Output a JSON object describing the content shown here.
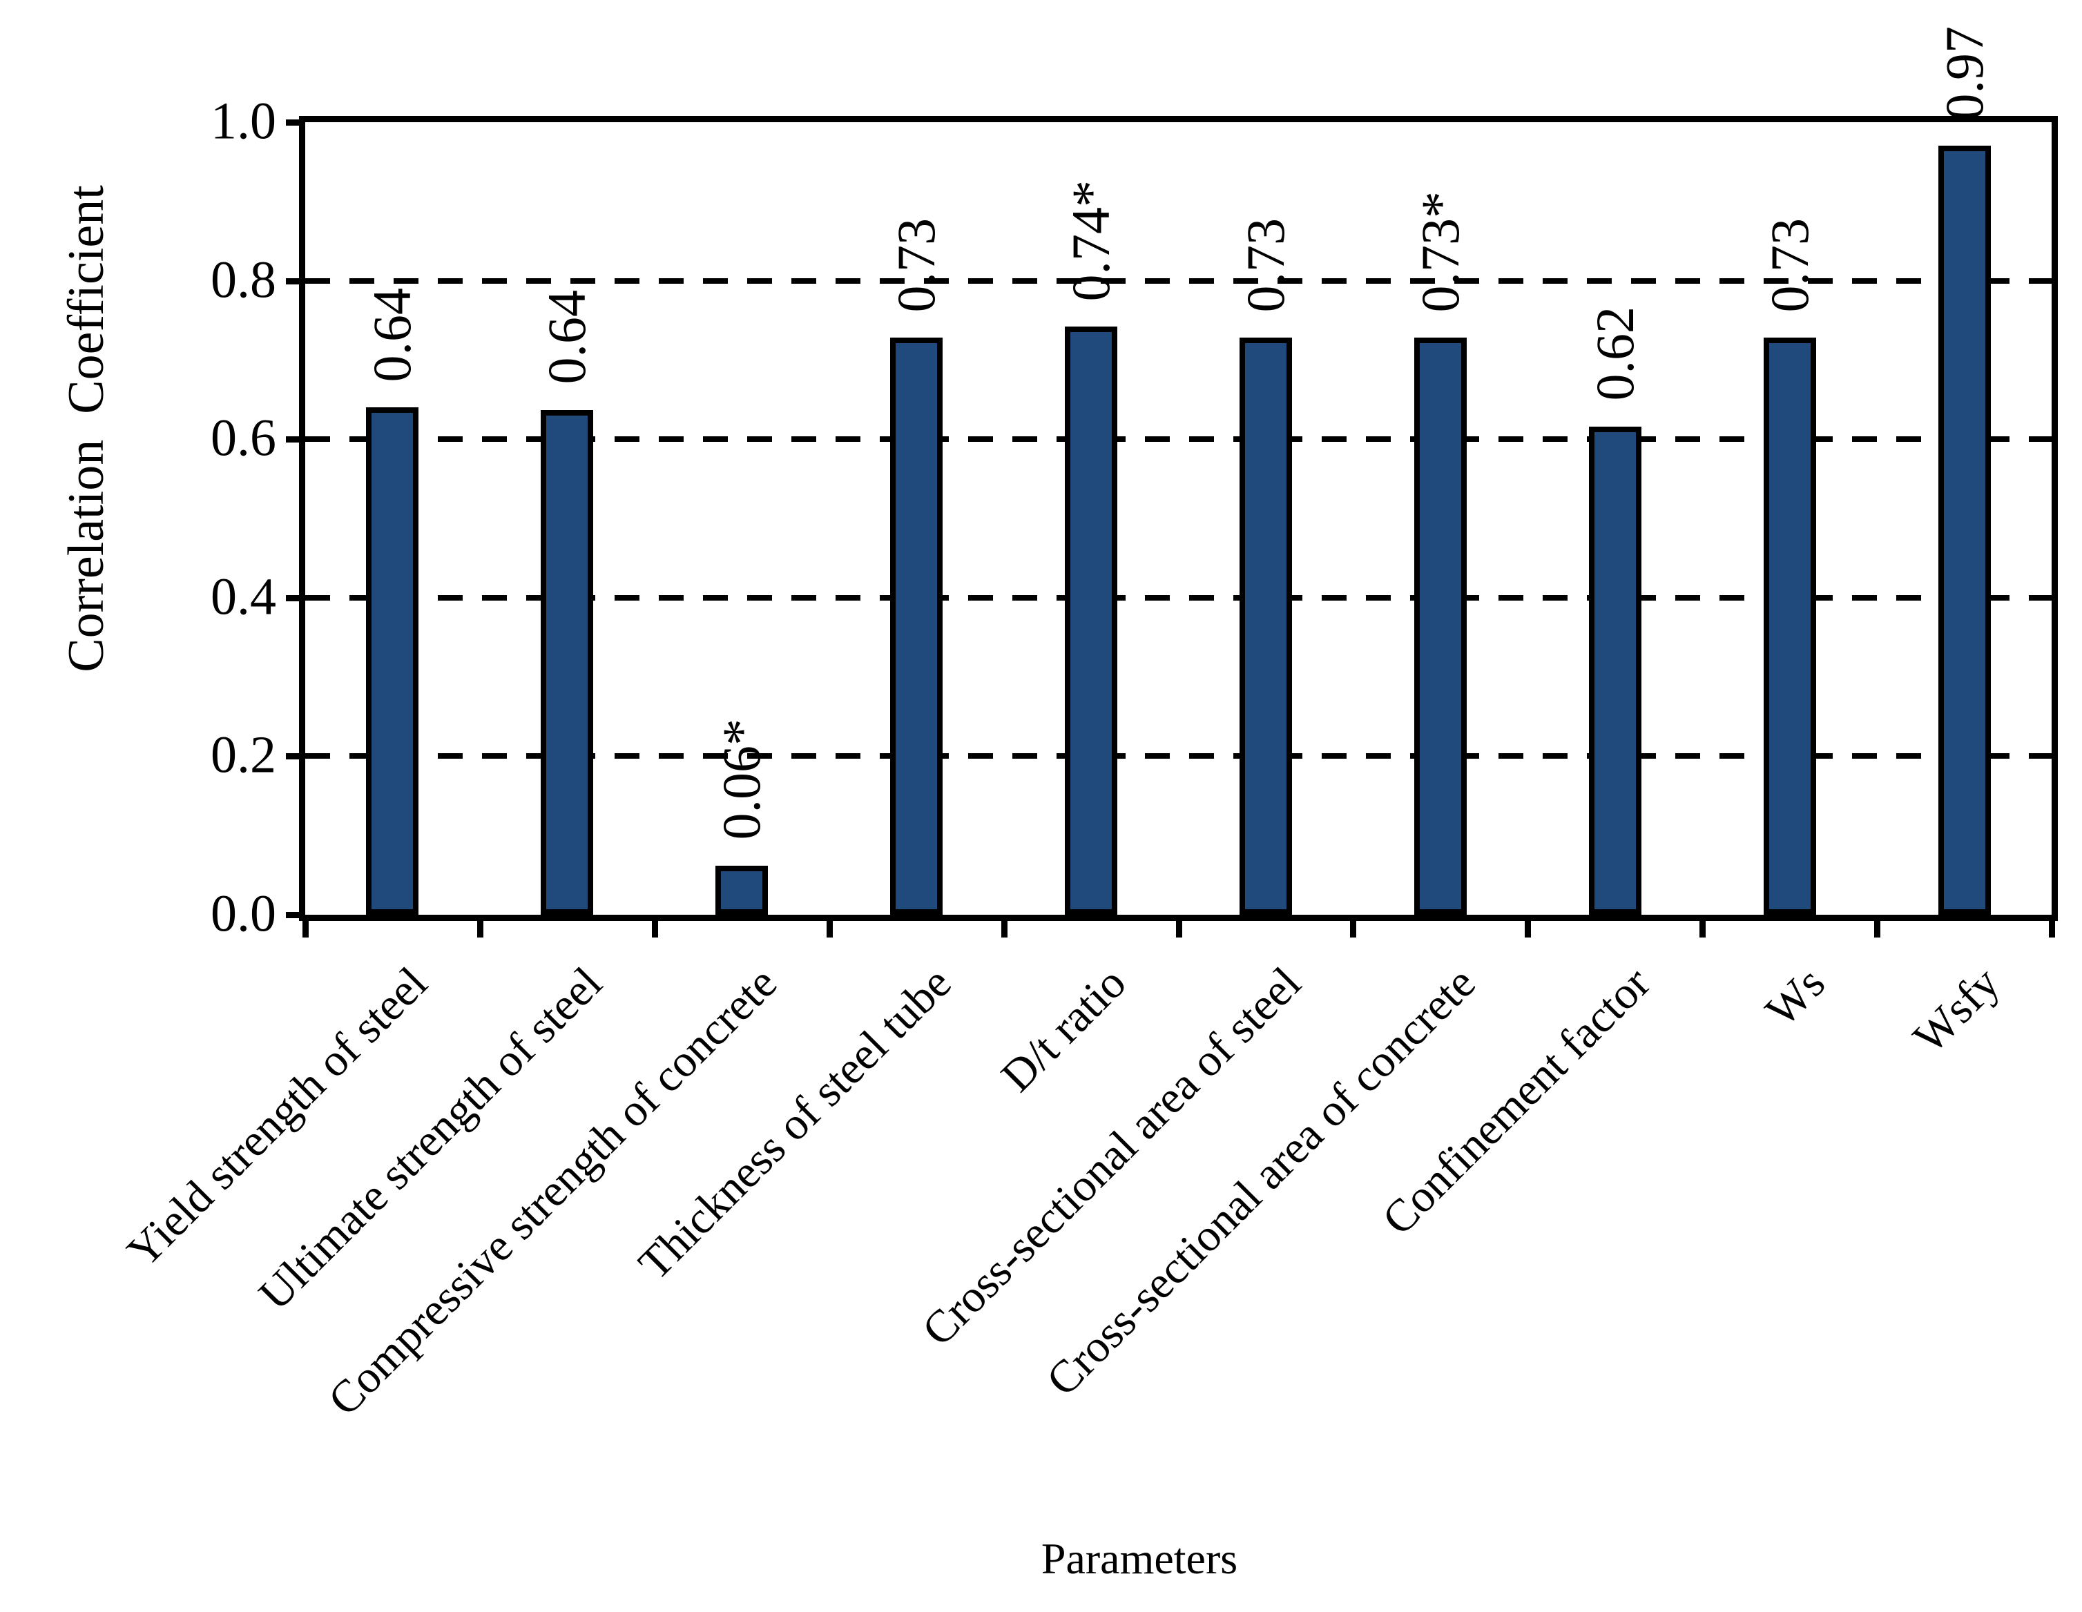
{
  "figure": {
    "background": "#FFFFFF"
  },
  "chart_data": {
    "type": "bar",
    "title": "",
    "xlabel": "Parameters",
    "ylabel": "Correlation  Coefficient",
    "categories": [
      "Yield strength of steel",
      "Ultimate strength of steel",
      "Compressive strength of concrete",
      "Thickness of steel tube",
      "D/t ratio",
      "Cross-sectional area of steel",
      "Cross-sectional area of concrete",
      "Confinement factor",
      "Ws",
      "Wsfy"
    ],
    "values": [
      0.64,
      0.637,
      0.062,
      0.728,
      0.742,
      0.728,
      0.728,
      0.616,
      0.728,
      0.97
    ],
    "bar_labels": [
      "0.64",
      "0.64",
      "0.06*",
      "0.73",
      "0.74*",
      "0.73",
      "0.73*",
      "0.62",
      "0.73",
      "0.97"
    ],
    "ylim": [
      0.0,
      1.0
    ],
    "ytick_labels": [
      "0.0",
      "0.2",
      "0.4",
      "0.6",
      "0.8",
      "1.0"
    ],
    "ytick_values": [
      0.0,
      0.2,
      0.4,
      0.6,
      0.8,
      1.0
    ],
    "gridline_values": [
      0.2,
      0.4,
      0.6,
      0.8
    ],
    "grid_style": "dashed",
    "legend_position": "none",
    "colors": {
      "bar_fill": "#1F4A7B",
      "bar_border": "#000000",
      "axis": "#000000",
      "text": "#000000"
    }
  }
}
